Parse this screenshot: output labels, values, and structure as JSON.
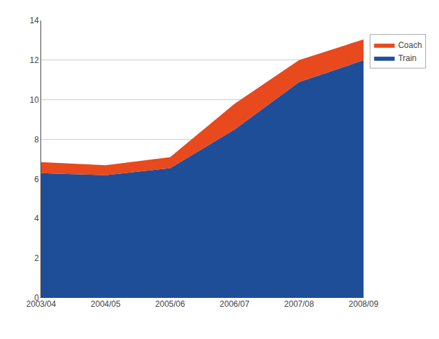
{
  "chart_data": {
    "type": "area",
    "stacked": true,
    "categories": [
      "2003/04",
      "2004/05",
      "2005/06",
      "2006/07",
      "2007/08",
      "2008/09"
    ],
    "series": [
      {
        "name": "Train",
        "color": "#1F4E99",
        "values": [
          6.3,
          6.2,
          6.55,
          8.5,
          10.9,
          12.0
        ]
      },
      {
        "name": "Coach",
        "color": "#E8491D",
        "values": [
          0.55,
          0.5,
          0.55,
          1.3,
          1.1,
          1.05
        ]
      }
    ],
    "ylim": [
      0,
      14
    ],
    "yticks": [
      0,
      2,
      4,
      6,
      8,
      10,
      12,
      14
    ],
    "grid": true,
    "legend": "right"
  }
}
